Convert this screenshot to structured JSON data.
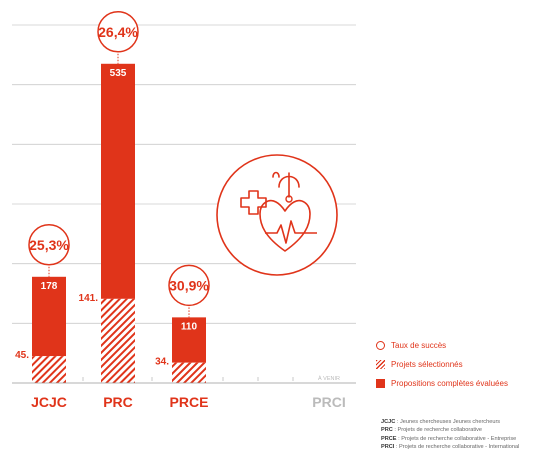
{
  "chart_data": {
    "type": "bar",
    "categories": [
      "JCJC",
      "PRC",
      "PRCE",
      "PRCI"
    ],
    "series": [
      {
        "name": "Propositions complètes évaluées",
        "values": [
          178,
          535,
          110,
          null
        ]
      },
      {
        "name": "Projets sélectionnés",
        "values": [
          45,
          141,
          34,
          null
        ]
      }
    ],
    "success_rates": [
      "25,3%",
      "26,4%",
      "30,9%",
      null
    ],
    "selected_labels": [
      "45.",
      "141.",
      "34.",
      null
    ],
    "evaluated_labels": [
      "178",
      "535",
      "110",
      null
    ],
    "annotations": {
      "prci_note": "À VENIR"
    },
    "ylim": [
      0,
      600
    ],
    "grid": true,
    "colors": {
      "accent": "#e0341a",
      "muted": "#bbbbbb",
      "grid": "#cccccc"
    }
  },
  "legend": {
    "items": [
      {
        "label": "Taux de succès",
        "swatch": "circle"
      },
      {
        "label": "Projets sélectionnés",
        "swatch": "hatch"
      },
      {
        "label": "Propositions complètes évaluées",
        "swatch": "solid"
      }
    ]
  },
  "definitions": [
    {
      "abbr": "JCJC",
      "text": " : Jeunes chercheuses Jeunes chercheurs"
    },
    {
      "abbr": "PRC",
      "text": " : Projets de recherche collaborative"
    },
    {
      "abbr": "PRCE",
      "text": " : Projets de recherche collaborative - Entreprise"
    },
    {
      "abbr": "PRCI",
      "text": " : Projets de recherche collaborative - International"
    }
  ],
  "icon": "medical-cross-heart-stethoscope-icon"
}
